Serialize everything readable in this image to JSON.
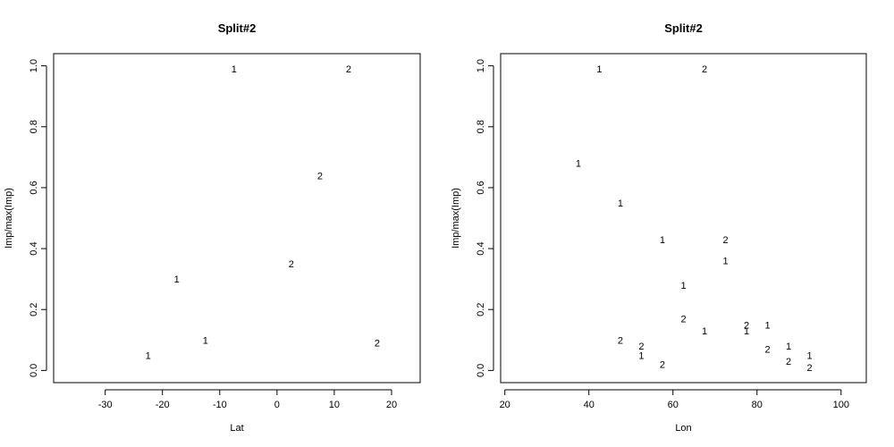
{
  "chart_data": [
    {
      "type": "scatter",
      "title": "Split#2",
      "xlabel": "Lat",
      "ylabel": "Imp/max(Imp)",
      "xlim": [
        -39,
        25
      ],
      "ylim": [
        -0.04,
        1.04
      ],
      "xticks": [
        -30,
        -20,
        -10,
        0,
        10,
        20
      ],
      "yticks": [
        0.0,
        0.2,
        0.4,
        0.6,
        0.8,
        1.0
      ],
      "xtick_labels": [
        "-30",
        "-20",
        "-10",
        "0",
        "10",
        "20"
      ],
      "ytick_labels": [
        "0.0",
        "0.2",
        "0.4",
        "0.6",
        "0.8",
        "1.0"
      ],
      "grid": false,
      "points": [
        {
          "x": -22.5,
          "y": 0.05,
          "label": "1"
        },
        {
          "x": -17.5,
          "y": 0.3,
          "label": "1"
        },
        {
          "x": -12.5,
          "y": 0.1,
          "label": "1"
        },
        {
          "x": -7.5,
          "y": 0.99,
          "label": "1"
        },
        {
          "x": 2.5,
          "y": 0.35,
          "label": "2"
        },
        {
          "x": 7.5,
          "y": 0.64,
          "label": "2"
        },
        {
          "x": 12.5,
          "y": 0.99,
          "label": "2"
        },
        {
          "x": 17.5,
          "y": 0.09,
          "label": "2"
        }
      ]
    },
    {
      "type": "scatter",
      "title": "Split#2",
      "xlabel": "Lon",
      "ylabel": "Imp/max(Imp)",
      "xlim": [
        19,
        106
      ],
      "ylim": [
        -0.04,
        1.04
      ],
      "xticks": [
        20,
        40,
        60,
        80,
        100
      ],
      "yticks": [
        0.0,
        0.2,
        0.4,
        0.6,
        0.8,
        1.0
      ],
      "xtick_labels": [
        "20",
        "40",
        "60",
        "80",
        "100"
      ],
      "ytick_labels": [
        "0.0",
        "0.2",
        "0.4",
        "0.6",
        "0.8",
        "1.0"
      ],
      "grid": false,
      "points": [
        {
          "x": 37.5,
          "y": 0.68,
          "label": "1"
        },
        {
          "x": 42.5,
          "y": 0.99,
          "label": "1"
        },
        {
          "x": 47.5,
          "y": 0.55,
          "label": "1"
        },
        {
          "x": 47.5,
          "y": 0.1,
          "label": "2"
        },
        {
          "x": 52.5,
          "y": 0.08,
          "label": "2"
        },
        {
          "x": 52.5,
          "y": 0.05,
          "label": "1"
        },
        {
          "x": 57.5,
          "y": 0.43,
          "label": "1"
        },
        {
          "x": 57.5,
          "y": 0.02,
          "label": "2"
        },
        {
          "x": 62.5,
          "y": 0.28,
          "label": "1"
        },
        {
          "x": 62.5,
          "y": 0.17,
          "label": "2"
        },
        {
          "x": 67.5,
          "y": 0.99,
          "label": "2"
        },
        {
          "x": 67.5,
          "y": 0.13,
          "label": "1"
        },
        {
          "x": 72.5,
          "y": 0.43,
          "label": "2"
        },
        {
          "x": 72.5,
          "y": 0.36,
          "label": "1"
        },
        {
          "x": 77.5,
          "y": 0.15,
          "label": "2"
        },
        {
          "x": 77.5,
          "y": 0.13,
          "label": "1"
        },
        {
          "x": 82.5,
          "y": 0.15,
          "label": "1"
        },
        {
          "x": 82.5,
          "y": 0.07,
          "label": "2"
        },
        {
          "x": 87.5,
          "y": 0.08,
          "label": "1"
        },
        {
          "x": 87.5,
          "y": 0.03,
          "label": "2"
        },
        {
          "x": 92.5,
          "y": 0.05,
          "label": "1"
        },
        {
          "x": 92.5,
          "y": 0.01,
          "label": "2"
        }
      ]
    }
  ]
}
